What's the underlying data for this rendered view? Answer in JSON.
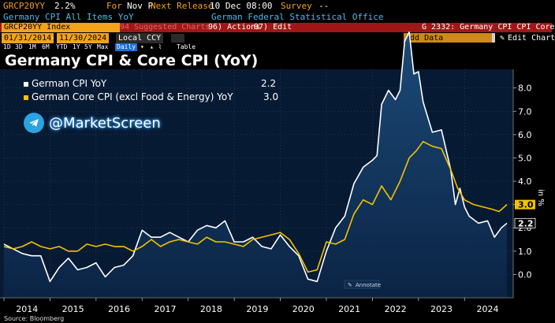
{
  "header": {
    "ticker": "GRCP20YY",
    "last_value": "2.2%",
    "for_label": "For",
    "for_period": "Nov P",
    "next_release_label": "Next Release",
    "next_release_value": "10 Dec 08:00",
    "survey_label": "Survey",
    "survey_value": "--",
    "description": "Germany CPI All Items YoY",
    "source_office": "German Federal Statistical Office"
  },
  "toolbar": {
    "index_field": "GRCP20YY Index",
    "suggested_charts": "94 Suggested Charts",
    "actions": "96) Actions",
    "edit": "97) Edit",
    "chart_id": "G 2332: Germany CPI CPI Core"
  },
  "range": {
    "start_date": "01/31/2014",
    "end_date": "11/30/2024",
    "currency": "Local CCY",
    "periods": [
      "1D",
      "3D",
      "1M",
      "6M",
      "YTD",
      "1Y",
      "5Y",
      "Max"
    ],
    "frequency": "Daily",
    "table_label": "Table",
    "add_data": "Add Data",
    "edit_chart": "Edit Chart"
  },
  "chart_data": {
    "type": "line",
    "title": "Germany CPI & Core CPI (YoY)",
    "xlabel": "",
    "ylabel": "in %",
    "x_ticks": [
      "2014",
      "2015",
      "2016",
      "2017",
      "2018",
      "2019",
      "2020",
      "2021",
      "2022",
      "2023",
      "2024"
    ],
    "y_ticks": [
      "0.0",
      "1.0",
      "2.0",
      "3.0",
      "4.0",
      "5.0",
      "6.0",
      "7.0",
      "8.0"
    ],
    "ylim": [
      -1.0,
      8.8
    ],
    "x_start_year": 2014.0,
    "x_end_year": 2024.92,
    "series": [
      {
        "name": "German CPI YoY",
        "last_label": "2.2",
        "color": "#ffffff",
        "fill": true,
        "points": [
          [
            2014.0,
            1.3
          ],
          [
            2014.2,
            1.1
          ],
          [
            2014.4,
            0.9
          ],
          [
            2014.6,
            0.8
          ],
          [
            2014.8,
            0.8
          ],
          [
            2015.0,
            -0.3
          ],
          [
            2015.2,
            0.3
          ],
          [
            2015.4,
            0.7
          ],
          [
            2015.6,
            0.2
          ],
          [
            2015.8,
            0.3
          ],
          [
            2016.0,
            0.5
          ],
          [
            2016.2,
            -0.1
          ],
          [
            2016.4,
            0.3
          ],
          [
            2016.6,
            0.4
          ],
          [
            2016.8,
            0.8
          ],
          [
            2017.0,
            1.9
          ],
          [
            2017.2,
            1.6
          ],
          [
            2017.4,
            1.6
          ],
          [
            2017.6,
            1.8
          ],
          [
            2017.8,
            1.6
          ],
          [
            2018.0,
            1.4
          ],
          [
            2018.2,
            1.9
          ],
          [
            2018.4,
            2.1
          ],
          [
            2018.6,
            2.0
          ],
          [
            2018.8,
            2.3
          ],
          [
            2019.0,
            1.4
          ],
          [
            2019.2,
            1.4
          ],
          [
            2019.4,
            1.6
          ],
          [
            2019.6,
            1.2
          ],
          [
            2019.8,
            1.1
          ],
          [
            2020.0,
            1.7
          ],
          [
            2020.2,
            1.2
          ],
          [
            2020.4,
            0.8
          ],
          [
            2020.6,
            -0.2
          ],
          [
            2020.8,
            -0.3
          ],
          [
            2021.0,
            1.0
          ],
          [
            2021.2,
            2.0
          ],
          [
            2021.4,
            2.5
          ],
          [
            2021.6,
            3.9
          ],
          [
            2021.8,
            4.6
          ],
          [
            2022.0,
            4.9
          ],
          [
            2022.1,
            5.1
          ],
          [
            2022.2,
            7.3
          ],
          [
            2022.35,
            7.9
          ],
          [
            2022.5,
            7.5
          ],
          [
            2022.6,
            7.9
          ],
          [
            2022.7,
            10.0
          ],
          [
            2022.8,
            10.4
          ],
          [
            2022.9,
            8.6
          ],
          [
            2023.0,
            8.7
          ],
          [
            2023.1,
            7.4
          ],
          [
            2023.3,
            6.1
          ],
          [
            2023.5,
            6.2
          ],
          [
            2023.7,
            4.5
          ],
          [
            2023.8,
            3.0
          ],
          [
            2023.9,
            3.7
          ],
          [
            2024.0,
            2.9
          ],
          [
            2024.1,
            2.5
          ],
          [
            2024.3,
            2.2
          ],
          [
            2024.5,
            2.3
          ],
          [
            2024.65,
            1.6
          ],
          [
            2024.8,
            2.0
          ],
          [
            2024.92,
            2.2
          ]
        ]
      },
      {
        "name": "German Core CPI (excl Food & Energy) YoY",
        "last_label": "3.0",
        "color": "#f3c300",
        "fill": false,
        "points": [
          [
            2014.0,
            1.2
          ],
          [
            2014.2,
            1.1
          ],
          [
            2014.4,
            1.2
          ],
          [
            2014.6,
            1.4
          ],
          [
            2014.8,
            1.2
          ],
          [
            2015.0,
            1.1
          ],
          [
            2015.2,
            1.2
          ],
          [
            2015.4,
            1.0
          ],
          [
            2015.6,
            1.0
          ],
          [
            2015.8,
            1.3
          ],
          [
            2016.0,
            1.2
          ],
          [
            2016.2,
            1.3
          ],
          [
            2016.4,
            1.2
          ],
          [
            2016.6,
            1.2
          ],
          [
            2016.8,
            1.0
          ],
          [
            2017.0,
            1.2
          ],
          [
            2017.2,
            1.5
          ],
          [
            2017.4,
            1.2
          ],
          [
            2017.6,
            1.4
          ],
          [
            2017.8,
            1.5
          ],
          [
            2018.0,
            1.4
          ],
          [
            2018.2,
            1.3
          ],
          [
            2018.4,
            1.6
          ],
          [
            2018.6,
            1.4
          ],
          [
            2018.8,
            1.4
          ],
          [
            2019.0,
            1.3
          ],
          [
            2019.2,
            1.2
          ],
          [
            2019.4,
            1.5
          ],
          [
            2019.6,
            1.6
          ],
          [
            2019.8,
            1.7
          ],
          [
            2020.0,
            1.8
          ],
          [
            2020.2,
            1.5
          ],
          [
            2020.4,
            0.9
          ],
          [
            2020.6,
            0.1
          ],
          [
            2020.8,
            0.2
          ],
          [
            2021.0,
            1.4
          ],
          [
            2021.2,
            1.3
          ],
          [
            2021.4,
            1.5
          ],
          [
            2021.6,
            2.6
          ],
          [
            2021.8,
            3.2
          ],
          [
            2022.0,
            3.0
          ],
          [
            2022.2,
            3.8
          ],
          [
            2022.4,
            3.2
          ],
          [
            2022.6,
            4.0
          ],
          [
            2022.8,
            5.0
          ],
          [
            2022.95,
            5.3
          ],
          [
            2023.1,
            5.7
          ],
          [
            2023.3,
            5.5
          ],
          [
            2023.5,
            5.4
          ],
          [
            2023.7,
            4.5
          ],
          [
            2023.85,
            3.7
          ],
          [
            2024.0,
            3.2
          ],
          [
            2024.2,
            3.0
          ],
          [
            2024.4,
            2.9
          ],
          [
            2024.6,
            2.8
          ],
          [
            2024.75,
            2.7
          ],
          [
            2024.92,
            3.0
          ]
        ]
      }
    ],
    "annotation": "Annotate"
  },
  "watermark": {
    "handle": "@MarketScreen"
  },
  "footer": {
    "source": "Source: Bloomberg"
  },
  "colors": {
    "amber": "#f3a21b",
    "header_red": "#a01717",
    "plot_bg": "#071a33",
    "area_top": "#1d4d7c",
    "core_line": "#f3c300"
  }
}
